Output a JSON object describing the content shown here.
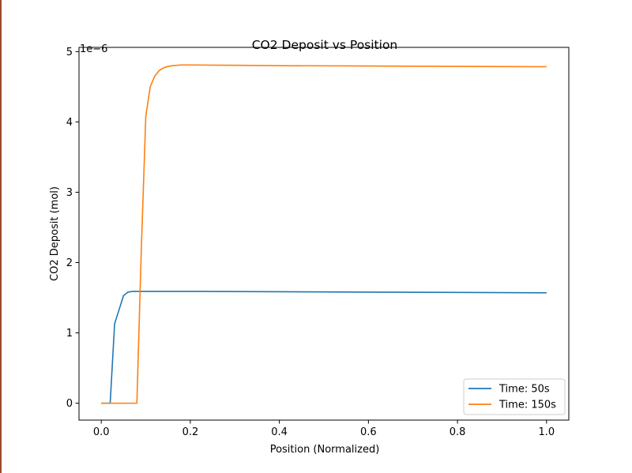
{
  "chart_data": {
    "type": "line",
    "title": "CO2 Deposit vs Position",
    "xlabel": "Position (Normalized)",
    "ylabel": "CO2 Deposit (mol)",
    "offset_text": "1e−6",
    "xlim": [
      -0.05,
      1.05
    ],
    "ylim": [
      -0.24,
      5.06
    ],
    "x_ticks": [
      0.0,
      0.2,
      0.4,
      0.6,
      0.8,
      1.0
    ],
    "x_tick_labels": [
      "0.0",
      "0.2",
      "0.4",
      "0.6",
      "0.8",
      "1.0"
    ],
    "y_ticks": [
      0,
      1,
      2,
      3,
      4,
      5
    ],
    "y_tick_labels": [
      "0",
      "1",
      "2",
      "3",
      "4",
      "5"
    ],
    "grid": false,
    "legend_position": "lower-right",
    "series": [
      {
        "name": "Time: 50s",
        "color": "#1f77b4",
        "x": [
          0.0,
          0.02,
          0.03,
          0.04,
          0.05,
          0.06,
          0.07,
          0.08,
          0.1,
          0.2,
          0.4,
          0.6,
          0.8,
          1.0
        ],
        "y": [
          0.0,
          0.0,
          1.13,
          1.33,
          1.53,
          1.58,
          1.59,
          1.59,
          1.59,
          1.59,
          1.585,
          1.58,
          1.575,
          1.57
        ]
      },
      {
        "name": "Time: 150s",
        "color": "#ff7f0e",
        "x": [
          0.0,
          0.07,
          0.08,
          0.09,
          0.1,
          0.11,
          0.12,
          0.13,
          0.14,
          0.15,
          0.16,
          0.18,
          0.2,
          0.3,
          0.4,
          0.6,
          0.8,
          1.0
        ],
        "y": [
          0.0,
          0.0,
          0.0,
          2.2,
          4.08,
          4.5,
          4.65,
          4.73,
          4.77,
          4.79,
          4.8,
          4.81,
          4.81,
          4.805,
          4.8,
          4.795,
          4.79,
          4.785
        ]
      }
    ]
  }
}
